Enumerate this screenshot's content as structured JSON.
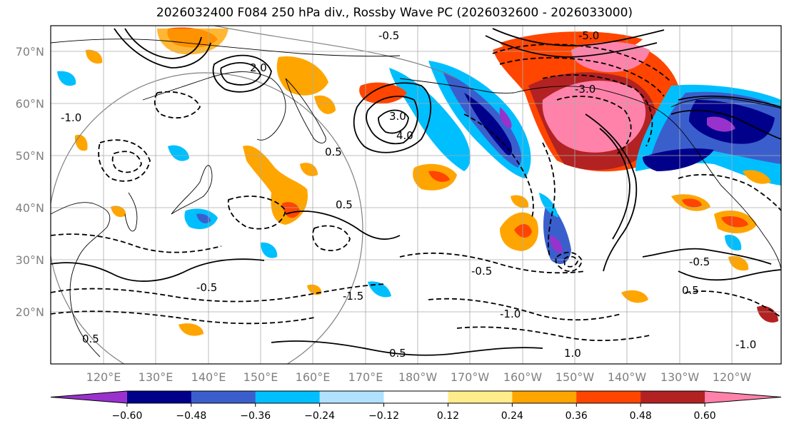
{
  "title": "2026032400 F084 250 hPa div., Rossby Wave PC (2026032600 - 2026033000)",
  "map": {
    "lat_labels": [
      "70°N",
      "60°N",
      "50°N",
      "40°N",
      "30°N",
      "20°N"
    ],
    "lon_labels": [
      "120°E",
      "130°E",
      "140°E",
      "150°E",
      "160°E",
      "170°E",
      "180°W",
      "170°W",
      "160°W",
      "150°W",
      "140°W",
      "130°W",
      "120°W"
    ],
    "contour_labels": [
      "-0.5",
      "3.0",
      "4.0",
      "-1.0",
      "0.5",
      "2.0",
      "-5.0",
      "-3.0",
      "0.5",
      "-0.5",
      "-1.0",
      "0.5",
      "-0.5",
      "1.0",
      "0.5",
      "-1.0",
      "-0.5",
      "0.5",
      "-1.5"
    ]
  },
  "colorbar": {
    "ticks": [
      "−0.60",
      "−0.48",
      "−0.36",
      "−0.24",
      "−0.12",
      "0.12",
      "0.24",
      "0.36",
      "0.48",
      "0.60"
    ],
    "colors": [
      "#9932cc",
      "#00008b",
      "#3a5fcd",
      "#00bfff",
      "#b0e2ff",
      "#ffffff",
      "#ffec8b",
      "#ffa500",
      "#ff4500",
      "#b22222",
      "#ff82ab"
    ]
  },
  "fill_colors": {
    "pink": "#ff82ab",
    "darkred": "#b22222",
    "red": "#ff4500",
    "orange": "#ffa500",
    "yellow": "#ffec8b",
    "lightblue": "#b0e2ff",
    "cyan": "#00bfff",
    "blue": "#3a5fcd",
    "navy": "#00008b",
    "purple": "#9932cc"
  }
}
